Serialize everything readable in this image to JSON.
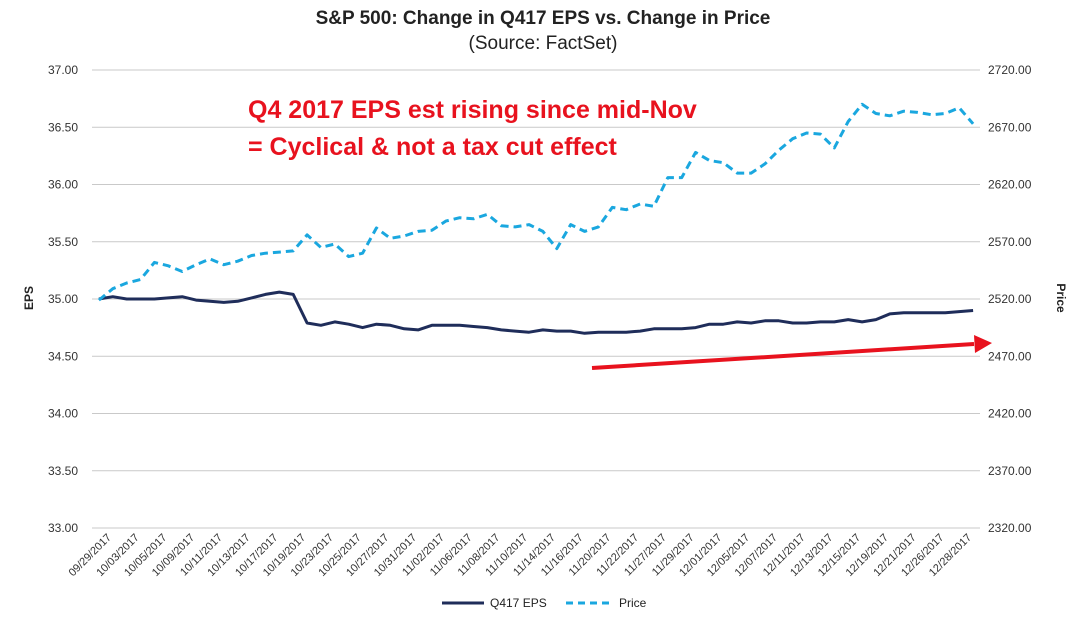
{
  "chart_data": {
    "type": "line",
    "title": "S&P 500: Change in Q417 EPS vs. Change in Price",
    "subtitle": "(Source: FactSet)",
    "ylabel_left": "EPS",
    "ylabel_right": "Price",
    "ylim_left": [
      33.0,
      37.0
    ],
    "ylim_right": [
      2320,
      2720
    ],
    "yticks_left": [
      "33.00",
      "33.50",
      "34.00",
      "34.50",
      "35.00",
      "35.50",
      "36.00",
      "36.50",
      "37.00"
    ],
    "yticks_right": [
      "2320.00",
      "2370.00",
      "2420.00",
      "2470.00",
      "2520.00",
      "2570.00",
      "2620.00",
      "2670.00",
      "2720.00"
    ],
    "x_tick_labels": [
      "09/29/2017",
      "10/03/2017",
      "10/05/2017",
      "10/09/2017",
      "10/11/2017",
      "10/13/2017",
      "10/17/2017",
      "10/19/2017",
      "10/23/2017",
      "10/25/2017",
      "10/27/2017",
      "10/31/2017",
      "11/02/2017",
      "11/06/2017",
      "11/08/2017",
      "11/10/2017",
      "11/14/2017",
      "11/16/2017",
      "11/20/2017",
      "11/22/2017",
      "11/27/2017",
      "11/29/2017",
      "12/01/2017",
      "12/05/2017",
      "12/07/2017",
      "12/11/2017",
      "12/13/2017",
      "12/15/2017",
      "12/19/2017",
      "12/21/2017",
      "12/26/2017",
      "12/28/2017"
    ],
    "grid": true,
    "legend_position": "bottom",
    "series": [
      {
        "name": "Q417 EPS",
        "axis": "left",
        "color": "#1f2d5a",
        "style": "solid",
        "values": [
          35.0,
          35.02,
          35.0,
          35.0,
          35.0,
          35.01,
          35.02,
          34.99,
          34.98,
          34.97,
          34.98,
          35.01,
          35.04,
          35.06,
          35.04,
          34.79,
          34.77,
          34.8,
          34.78,
          34.75,
          34.78,
          34.77,
          34.74,
          34.73,
          34.77,
          34.77,
          34.77,
          34.76,
          34.75,
          34.73,
          34.72,
          34.71,
          34.73,
          34.72,
          34.72,
          34.7,
          34.71,
          34.71,
          34.71,
          34.72,
          34.74,
          34.74,
          34.74,
          34.75,
          34.78,
          34.78,
          34.8,
          34.79,
          34.81,
          34.81,
          34.79,
          34.79,
          34.8,
          34.8,
          34.82,
          34.8,
          34.82,
          34.87,
          34.88,
          34.88,
          34.88,
          34.88,
          34.89,
          34.9
        ]
      },
      {
        "name": "Price",
        "axis": "right",
        "color": "#1aa7df",
        "style": "dashed",
        "values": [
          2519,
          2529,
          2534,
          2537,
          2552,
          2549,
          2544,
          2550,
          2555,
          2550,
          2553,
          2558,
          2560,
          2561,
          2562,
          2576,
          2565,
          2568,
          2557,
          2560,
          2582,
          2573,
          2575,
          2579,
          2580,
          2588,
          2591,
          2590,
          2594,
          2584,
          2583,
          2585,
          2579,
          2564,
          2585,
          2579,
          2583,
          2600,
          2598,
          2603,
          2601,
          2626,
          2626,
          2648,
          2641,
          2639,
          2630,
          2630,
          2638,
          2650,
          2660,
          2665,
          2664,
          2652,
          2675,
          2690,
          2682,
          2680,
          2684,
          2683,
          2681,
          2682,
          2687,
          2673
        ]
      }
    ],
    "annotation": {
      "lines": [
        "Q4 2017 EPS est rising since mid-Nov",
        "= Cyclical & not a tax cut effect"
      ],
      "color": "#e8121e"
    },
    "arrow": {
      "color": "#e8121e"
    }
  }
}
